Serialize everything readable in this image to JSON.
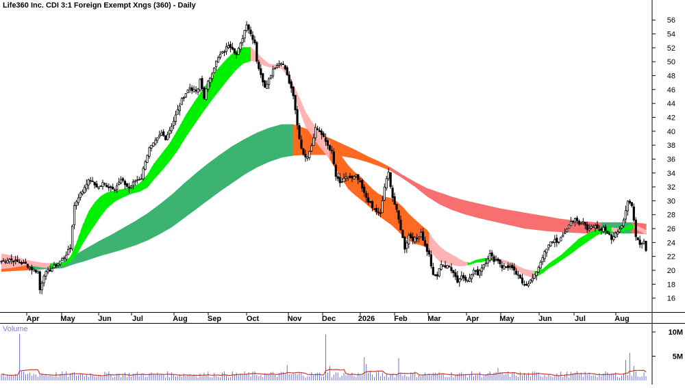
{
  "chart_data": {
    "type": "candlestick",
    "title": "Life360 Inc. CDI 3:1 Foreign Exempt Xngs (360) - Daily",
    "volume_label": "Volume",
    "x_tick_labels": [
      "Apr",
      "May",
      "Jun",
      "Jul",
      "Aug",
      "Sep",
      "Oct",
      "Nov",
      "Dec",
      "2026",
      "Feb",
      "Mar",
      "Apr",
      "May",
      "Jun",
      "Jul",
      "Aug"
    ],
    "y_ticks": [
      16,
      18,
      20,
      22,
      24,
      26,
      28,
      30,
      32,
      34,
      36,
      38,
      40,
      42,
      44,
      46,
      48,
      50,
      52,
      54,
      56
    ],
    "ylim": [
      14,
      57.5
    ],
    "volume_ticks": [
      {
        "value": 10,
        "label": "10M"
      },
      {
        "value": 5,
        "label": "5M"
      }
    ],
    "volume_ylim": [
      0,
      11
    ],
    "grid": false,
    "price_anchors": [
      [
        0,
        21.3
      ],
      [
        4,
        21.6
      ],
      [
        8,
        21.2
      ],
      [
        12,
        20.9
      ],
      [
        15,
        20.2
      ],
      [
        18,
        19.8
      ],
      [
        19,
        17.2
      ],
      [
        21,
        19.4
      ],
      [
        25,
        20.3
      ],
      [
        28,
        21.0
      ],
      [
        31,
        21.9
      ],
      [
        34,
        23.2
      ],
      [
        35,
        26.5
      ],
      [
        36,
        29.3
      ],
      [
        38,
        30.6
      ],
      [
        40,
        31.4
      ],
      [
        42,
        32.6
      ],
      [
        44,
        33.0
      ],
      [
        46,
        32.3
      ],
      [
        48,
        31.9
      ],
      [
        50,
        32.5
      ],
      [
        53,
        32.0
      ],
      [
        56,
        31.8
      ],
      [
        59,
        33.0
      ],
      [
        61,
        32.4
      ],
      [
        63,
        31.8
      ],
      [
        66,
        32.9
      ],
      [
        69,
        33.3
      ],
      [
        71,
        35.8
      ],
      [
        73,
        37.5
      ],
      [
        75,
        38.1
      ],
      [
        77,
        38.9
      ],
      [
        79,
        39.7
      ],
      [
        81,
        39.0
      ],
      [
        83,
        40.2
      ],
      [
        85,
        41.5
      ],
      [
        87,
        43.0
      ],
      [
        89,
        44.5
      ],
      [
        91,
        45.5
      ],
      [
        93,
        46.3
      ],
      [
        95,
        45.8
      ],
      [
        97,
        45.9
      ],
      [
        98,
        47.4
      ],
      [
        100,
        44.9
      ],
      [
        102,
        47.0
      ],
      [
        104,
        48.5
      ],
      [
        106,
        50.0
      ],
      [
        108,
        51.0
      ],
      [
        110,
        51.5
      ],
      [
        112,
        52.5
      ],
      [
        114,
        52.0
      ],
      [
        116,
        51.0
      ],
      [
        118,
        52.5
      ],
      [
        120,
        54.5
      ],
      [
        121,
        55.5
      ],
      [
        123,
        54.0
      ],
      [
        125,
        52.8
      ],
      [
        126,
        50.2
      ],
      [
        128,
        48.0
      ],
      [
        130,
        46.5
      ],
      [
        132,
        47.5
      ],
      [
        134,
        49.0
      ],
      [
        136,
        49.5
      ],
      [
        138,
        50.0
      ],
      [
        140,
        49.0
      ],
      [
        142,
        47.0
      ],
      [
        144,
        45.0
      ],
      [
        145,
        43.0
      ],
      [
        147,
        39.0
      ],
      [
        149,
        36.5
      ],
      [
        151,
        36.5
      ],
      [
        153,
        38.0
      ],
      [
        155,
        40.5
      ],
      [
        157,
        40.0
      ],
      [
        159,
        39.0
      ],
      [
        161,
        38.0
      ],
      [
        163,
        37.0
      ],
      [
        165,
        33.5
      ],
      [
        167,
        32.5
      ],
      [
        169,
        33.0
      ],
      [
        171,
        33.5
      ],
      [
        173,
        33.2
      ],
      [
        175,
        33.5
      ],
      [
        177,
        32.5
      ],
      [
        179,
        31.0
      ],
      [
        181,
        30.0
      ],
      [
        183,
        29.0
      ],
      [
        185,
        28.5
      ],
      [
        187,
        28.0
      ],
      [
        189,
        32.0
      ],
      [
        191,
        34.0
      ],
      [
        193,
        30.5
      ],
      [
        195,
        28.5
      ],
      [
        197,
        26.0
      ],
      [
        199,
        23.2
      ],
      [
        201,
        25.0
      ],
      [
        203,
        24.5
      ],
      [
        205,
        24.5
      ],
      [
        207,
        25.5
      ],
      [
        209,
        23.5
      ],
      [
        211,
        22.2
      ],
      [
        213,
        19.2
      ],
      [
        215,
        19.2
      ],
      [
        217,
        21.0
      ],
      [
        219,
        20.5
      ],
      [
        221,
        20.5
      ],
      [
        223,
        19.8
      ],
      [
        225,
        18.4
      ],
      [
        227,
        19.2
      ],
      [
        229,
        18.8
      ],
      [
        231,
        18.8
      ],
      [
        233,
        20.0
      ],
      [
        235,
        19.5
      ],
      [
        237,
        20.5
      ],
      [
        239,
        21.3
      ],
      [
        241,
        22.3
      ],
      [
        243,
        21.5
      ],
      [
        245,
        21.5
      ],
      [
        247,
        20.5
      ],
      [
        249,
        20.5
      ],
      [
        251,
        20.5
      ],
      [
        253,
        19.8
      ],
      [
        255,
        19.2
      ],
      [
        257,
        18.2
      ],
      [
        259,
        18.0
      ],
      [
        261,
        18.5
      ],
      [
        263,
        19.2
      ],
      [
        265,
        20.5
      ],
      [
        267,
        22.0
      ],
      [
        269,
        23.0
      ],
      [
        271,
        24.0
      ],
      [
        273,
        24.4
      ],
      [
        275,
        24.0
      ],
      [
        277,
        25.0
      ],
      [
        279,
        26.0
      ],
      [
        281,
        27.0
      ],
      [
        283,
        27.5
      ],
      [
        285,
        26.5
      ],
      [
        287,
        27.0
      ],
      [
        289,
        25.9
      ],
      [
        291,
        26.5
      ],
      [
        293,
        26.2
      ],
      [
        295,
        25.6
      ],
      [
        297,
        26.0
      ],
      [
        299,
        25.5
      ],
      [
        301,
        24.5
      ],
      [
        303,
        25.5
      ],
      [
        305,
        26.0
      ],
      [
        307,
        27.0
      ],
      [
        309,
        29.9
      ],
      [
        311,
        29.5
      ],
      [
        313,
        25.0
      ],
      [
        315,
        23.8
      ],
      [
        317,
        24.2
      ],
      [
        318,
        22.8
      ]
    ],
    "ribbons": [
      {
        "name": "",
        "up_color": "#00f000",
        "down_color": "#ff6a21",
        "faded_down_color": "#ffb3b3",
        "edges": [
          [
            0,
            22.4,
            20.2
          ],
          [
            4,
            22.2,
            20.3
          ],
          [
            8,
            21.9,
            20.5
          ],
          [
            12,
            21.5,
            20.7
          ],
          [
            16,
            21.3,
            20.6
          ],
          [
            20,
            21.1,
            20.4
          ],
          [
            24,
            21.0,
            20.3
          ],
          [
            28,
            21.0,
            20.6
          ],
          [
            31,
            21.1,
            20.8
          ],
          [
            34,
            22.0,
            21.2
          ],
          [
            37,
            24.0,
            22.2
          ],
          [
            40,
            26.5,
            23.8
          ],
          [
            43,
            28.5,
            25.2
          ],
          [
            46,
            29.8,
            26.5
          ],
          [
            49,
            30.7,
            27.8
          ],
          [
            52,
            31.2,
            28.9
          ],
          [
            56,
            31.5,
            29.9
          ],
          [
            60,
            31.7,
            30.5
          ],
          [
            64,
            32.0,
            31.0
          ],
          [
            68,
            32.5,
            31.3
          ],
          [
            72,
            33.8,
            31.9
          ],
          [
            75,
            35.3,
            33.0
          ],
          [
            79,
            36.8,
            34.3
          ],
          [
            83,
            38.3,
            35.7
          ],
          [
            87,
            40.3,
            37.3
          ],
          [
            91,
            42.4,
            39.2
          ],
          [
            95,
            44.2,
            40.9
          ],
          [
            99,
            45.9,
            42.6
          ],
          [
            103,
            47.6,
            44.2
          ],
          [
            107,
            49.1,
            45.7
          ],
          [
            111,
            50.4,
            47.2
          ],
          [
            115,
            51.5,
            48.6
          ],
          [
            119,
            52.1,
            49.7
          ],
          [
            123,
            52.1,
            50.1
          ],
          [
            126,
            51.3,
            50.0
          ],
          [
            129,
            50.4,
            49.5
          ],
          [
            132,
            49.7,
            49.2
          ],
          [
            135,
            49.6,
            49.1
          ],
          [
            138,
            49.5,
            49.0
          ],
          [
            141,
            48.8,
            48.0
          ],
          [
            144,
            46.7,
            45.2
          ],
          [
            147,
            44.8,
            43.0
          ],
          [
            150,
            42.8,
            40.6
          ],
          [
            153,
            41.4,
            39.4
          ],
          [
            156,
            40.3,
            38.1
          ],
          [
            159,
            39.4,
            37.0
          ],
          [
            162,
            38.5,
            35.9
          ],
          [
            165,
            37.5,
            34.5
          ],
          [
            168,
            36.3,
            33.1
          ],
          [
            171,
            35.1,
            31.7
          ],
          [
            174,
            34.2,
            30.9
          ],
          [
            177,
            33.5,
            30.2
          ],
          [
            180,
            32.6,
            29.5
          ],
          [
            183,
            31.7,
            28.7
          ],
          [
            186,
            31.0,
            27.9
          ],
          [
            189,
            30.6,
            27.2
          ],
          [
            192,
            30.4,
            26.6
          ],
          [
            195,
            29.9,
            25.8
          ],
          [
            198,
            29.1,
            24.9
          ],
          [
            201,
            28.1,
            24.3
          ],
          [
            204,
            27.3,
            23.8
          ],
          [
            207,
            26.5,
            23.6
          ],
          [
            210,
            25.8,
            23.2
          ],
          [
            213,
            24.5,
            22.2
          ],
          [
            216,
            23.5,
            21.3
          ],
          [
            219,
            22.8,
            21.0
          ],
          [
            222,
            22.3,
            20.8
          ],
          [
            225,
            21.8,
            20.6
          ],
          [
            228,
            21.3,
            20.6
          ],
          [
            231,
            21.1,
            20.8
          ],
          [
            234,
            21.5,
            21.1
          ],
          [
            237,
            21.7,
            21.2
          ],
          [
            240,
            21.8,
            21.4
          ],
          [
            243,
            21.7,
            21.4
          ],
          [
            246,
            21.6,
            21.2
          ],
          [
            249,
            21.4,
            20.9
          ],
          [
            252,
            21.1,
            20.4
          ],
          [
            255,
            20.6,
            19.8
          ],
          [
            258,
            20.2,
            19.3
          ],
          [
            261,
            20.0,
            19.0
          ],
          [
            264,
            19.9,
            19.1
          ],
          [
            267,
            20.2,
            19.6
          ],
          [
            270,
            21.0,
            20.3
          ],
          [
            273,
            21.6,
            20.8
          ],
          [
            276,
            22.2,
            21.4
          ],
          [
            279,
            23.0,
            22.0
          ],
          [
            282,
            23.8,
            22.6
          ],
          [
            285,
            24.6,
            23.3
          ],
          [
            288,
            25.1,
            23.9
          ],
          [
            291,
            25.6,
            24.5
          ],
          [
            294,
            25.9,
            25.1
          ],
          [
            297,
            26.1,
            25.4
          ],
          [
            300,
            26.2,
            25.6
          ],
          [
            303,
            26.1,
            25.5
          ],
          [
            306,
            26.0,
            25.5
          ],
          [
            309,
            26.4,
            25.9
          ],
          [
            312,
            26.6,
            26.0
          ],
          [
            315,
            26.2,
            25.6
          ],
          [
            318,
            25.8,
            25.1
          ]
        ]
      },
      {
        "name": "",
        "up_color": "#3cb371",
        "down_color": "#ff6a21",
        "faded_down_color": "#f76f6f",
        "edges": [
          [
            0,
            21.6,
            19.8
          ],
          [
            6,
            21.4,
            19.9
          ],
          [
            12,
            21.2,
            20.0
          ],
          [
            18,
            21.1,
            20.1
          ],
          [
            24,
            21.0,
            20.2
          ],
          [
            30,
            21.2,
            20.3
          ],
          [
            36,
            22.2,
            20.9
          ],
          [
            42,
            23.2,
            21.4
          ],
          [
            48,
            24.2,
            22.0
          ],
          [
            54,
            25.1,
            22.5
          ],
          [
            60,
            26.1,
            23.0
          ],
          [
            66,
            27.1,
            23.6
          ],
          [
            72,
            28.2,
            24.3
          ],
          [
            78,
            29.5,
            25.2
          ],
          [
            84,
            30.9,
            26.2
          ],
          [
            90,
            32.5,
            27.5
          ],
          [
            96,
            34.0,
            28.8
          ],
          [
            102,
            35.4,
            30.1
          ],
          [
            108,
            36.7,
            31.4
          ],
          [
            114,
            37.9,
            32.6
          ],
          [
            120,
            38.9,
            33.8
          ],
          [
            126,
            39.8,
            34.8
          ],
          [
            132,
            40.5,
            35.6
          ],
          [
            138,
            41.0,
            36.2
          ],
          [
            144,
            41.0,
            36.5
          ],
          [
            150,
            40.4,
            36.6
          ],
          [
            156,
            39.7,
            36.6
          ],
          [
            162,
            39.0,
            36.6
          ],
          [
            168,
            38.2,
            36.4
          ],
          [
            174,
            37.4,
            36.1
          ],
          [
            180,
            36.5,
            35.6
          ],
          [
            186,
            35.7,
            35.0
          ],
          [
            192,
            34.8,
            34.3
          ],
          [
            198,
            33.7,
            33.2
          ],
          [
            204,
            32.7,
            32.0
          ],
          [
            210,
            31.8,
            30.6
          ],
          [
            216,
            31.2,
            29.5
          ],
          [
            222,
            30.6,
            28.7
          ],
          [
            228,
            30.1,
            28.1
          ],
          [
            234,
            29.7,
            27.6
          ],
          [
            240,
            29.3,
            27.2
          ],
          [
            246,
            28.9,
            26.8
          ],
          [
            252,
            28.6,
            26.4
          ],
          [
            258,
            28.3,
            26.0
          ],
          [
            264,
            28.0,
            25.8
          ],
          [
            270,
            27.7,
            25.6
          ],
          [
            276,
            27.4,
            25.5
          ],
          [
            282,
            27.2,
            25.4
          ],
          [
            288,
            27.0,
            25.3
          ],
          [
            294,
            26.9,
            25.3
          ],
          [
            300,
            26.9,
            25.3
          ],
          [
            306,
            26.9,
            25.3
          ],
          [
            312,
            26.9,
            25.3
          ],
          [
            318,
            26.7,
            25.2
          ]
        ]
      }
    ]
  }
}
